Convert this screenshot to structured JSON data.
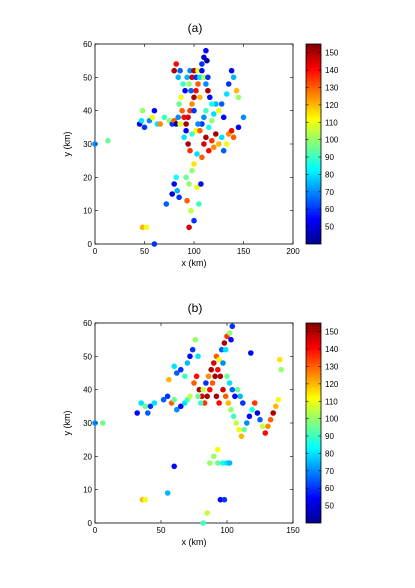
{
  "chart_data": [
    {
      "type": "scatter",
      "title": "(a)",
      "xlabel": "x (km)",
      "ylabel": "y (km)",
      "xlim": [
        0,
        200
      ],
      "ylim": [
        0,
        60
      ],
      "xticks": [
        "0",
        "50",
        "100",
        "150",
        "200"
      ],
      "yticks": [
        "0",
        "10",
        "20",
        "30",
        "40",
        "50",
        "60"
      ],
      "colorbar": {
        "range": [
          40,
          155
        ],
        "ticks": [
          "50",
          "60",
          "70",
          "80",
          "90",
          "100",
          "110",
          "120",
          "130",
          "140",
          "150"
        ]
      },
      "points": [
        [
          0,
          30,
          70
        ],
        [
          13,
          31,
          95
        ],
        [
          48,
          5,
          120
        ],
        [
          52,
          5,
          110
        ],
        [
          60,
          0,
          60
        ],
        [
          45,
          36,
          50
        ],
        [
          47,
          37,
          80
        ],
        [
          48,
          40,
          100
        ],
        [
          50,
          35,
          60
        ],
        [
          55,
          37,
          70
        ],
        [
          58,
          38,
          110
        ],
        [
          60,
          40,
          55
        ],
        [
          63,
          36,
          80
        ],
        [
          66,
          36,
          125
        ],
        [
          70,
          38,
          90
        ],
        [
          75,
          37,
          100
        ],
        [
          78,
          36,
          60
        ],
        [
          80,
          37,
          130
        ],
        [
          82,
          36,
          45
        ],
        [
          72,
          12,
          65
        ],
        [
          78,
          15,
          50
        ],
        [
          80,
          18,
          55
        ],
        [
          82,
          20,
          85
        ],
        [
          83,
          16,
          75
        ],
        [
          85,
          14,
          60
        ],
        [
          93,
          13,
          130
        ],
        [
          95,
          5,
          145
        ],
        [
          97,
          10,
          105
        ],
        [
          100,
          7,
          60
        ],
        [
          103,
          17,
          110
        ],
        [
          105,
          12,
          90
        ],
        [
          107,
          18,
          55
        ],
        [
          95,
          18,
          100
        ],
        [
          92,
          20,
          95
        ],
        [
          98,
          22,
          100
        ],
        [
          100,
          24,
          115
        ],
        [
          103,
          27,
          80
        ],
        [
          108,
          26,
          130
        ],
        [
          110,
          30,
          145
        ],
        [
          112,
          32,
          150
        ],
        [
          115,
          28,
          140
        ],
        [
          118,
          31,
          135
        ],
        [
          120,
          29,
          125
        ],
        [
          122,
          33,
          150
        ],
        [
          125,
          30,
          120
        ],
        [
          128,
          32,
          80
        ],
        [
          130,
          28,
          65
        ],
        [
          133,
          30,
          110
        ],
        [
          135,
          33,
          125
        ],
        [
          138,
          34,
          140
        ],
        [
          140,
          32,
          130
        ],
        [
          145,
          35,
          55
        ],
        [
          150,
          38,
          70
        ],
        [
          108,
          36,
          60
        ],
        [
          110,
          38,
          70
        ],
        [
          112,
          40,
          90
        ],
        [
          115,
          35,
          85
        ],
        [
          118,
          37,
          100
        ],
        [
          120,
          39,
          80
        ],
        [
          122,
          42,
          75
        ],
        [
          125,
          40,
          110
        ],
        [
          128,
          42,
          65
        ],
        [
          130,
          38,
          55
        ],
        [
          133,
          45,
          80
        ],
        [
          135,
          48,
          60
        ],
        [
          140,
          50,
          75
        ],
        [
          138,
          52,
          55
        ],
        [
          143,
          46,
          120
        ],
        [
          145,
          44,
          100
        ],
        [
          85,
          42,
          95
        ],
        [
          87,
          44,
          110
        ],
        [
          88,
          40,
          130
        ],
        [
          90,
          38,
          140
        ],
        [
          92,
          36,
          150
        ],
        [
          94,
          38,
          145
        ],
        [
          96,
          40,
          135
        ],
        [
          98,
          42,
          125
        ],
        [
          100,
          44,
          150
        ],
        [
          102,
          46,
          140
        ],
        [
          104,
          48,
          130
        ],
        [
          106,
          44,
          120
        ],
        [
          100,
          40,
          60
        ],
        [
          97,
          46,
          65
        ],
        [
          95,
          48,
          100
        ],
        [
          93,
          50,
          75
        ],
        [
          91,
          46,
          55
        ],
        [
          89,
          48,
          90
        ],
        [
          96,
          52,
          70
        ],
        [
          98,
          50,
          145
        ],
        [
          100,
          52,
          150
        ],
        [
          102,
          50,
          60
        ],
        [
          104,
          52,
          110
        ],
        [
          106,
          50,
          80
        ],
        [
          108,
          52,
          55
        ],
        [
          110,
          50,
          105
        ],
        [
          112,
          48,
          70
        ],
        [
          114,
          46,
          150
        ],
        [
          116,
          44,
          55
        ],
        [
          118,
          42,
          85
        ],
        [
          114,
          50,
          60
        ],
        [
          110,
          56,
          50
        ],
        [
          112,
          58,
          55
        ],
        [
          113,
          55,
          45
        ],
        [
          108,
          54,
          60
        ],
        [
          80,
          52,
          150
        ],
        [
          82,
          54,
          140
        ],
        [
          84,
          50,
          75
        ],
        [
          86,
          52,
          65
        ],
        [
          90,
          32,
          80
        ],
        [
          92,
          34,
          55
        ],
        [
          94,
          30,
          150
        ],
        [
          96,
          28,
          135
        ],
        [
          98,
          33,
          90
        ],
        [
          102,
          34,
          110
        ],
        [
          104,
          36,
          70
        ],
        [
          106,
          34,
          130
        ],
        [
          86,
          36,
          110
        ],
        [
          84,
          38,
          70
        ]
      ]
    },
    {
      "type": "scatter",
      "title": "(b)",
      "xlabel": "x (km)",
      "ylabel": "y (km)",
      "xlim": [
        0,
        150
      ],
      "ylim": [
        0,
        60
      ],
      "xticks": [
        "0",
        "50",
        "100",
        "150"
      ],
      "yticks": [
        "0",
        "10",
        "20",
        "30",
        "40",
        "50",
        "60"
      ],
      "colorbar": {
        "range": [
          40,
          155
        ],
        "ticks": [
          "50",
          "60",
          "70",
          "80",
          "90",
          "100",
          "110",
          "120",
          "130",
          "140",
          "150"
        ]
      },
      "points": [
        [
          0,
          30,
          70
        ],
        [
          6,
          30,
          95
        ],
        [
          36,
          7,
          120
        ],
        [
          38,
          7,
          110
        ],
        [
          60,
          17,
          55
        ],
        [
          82,
          0,
          90
        ],
        [
          85,
          3,
          105
        ],
        [
          95,
          7,
          55
        ],
        [
          98,
          7,
          60
        ],
        [
          87,
          18,
          100
        ],
        [
          93,
          18,
          95
        ],
        [
          97,
          18,
          85
        ],
        [
          100,
          18,
          80
        ],
        [
          102,
          18,
          75
        ],
        [
          90,
          20,
          100
        ],
        [
          93,
          22,
          110
        ],
        [
          55,
          9,
          75
        ],
        [
          32,
          33,
          55
        ],
        [
          35,
          36,
          80
        ],
        [
          38,
          35,
          95
        ],
        [
          40,
          33,
          65
        ],
        [
          42,
          35,
          60
        ],
        [
          45,
          36,
          80
        ],
        [
          52,
          37,
          65
        ],
        [
          55,
          38,
          60
        ],
        [
          58,
          36,
          130
        ],
        [
          60,
          37,
          95
        ],
        [
          62,
          34,
          70
        ],
        [
          65,
          35,
          55
        ],
        [
          68,
          36,
          80
        ],
        [
          70,
          37,
          90
        ],
        [
          72,
          38,
          105
        ],
        [
          56,
          43,
          120
        ],
        [
          60,
          47,
          80
        ],
        [
          62,
          45,
          65
        ],
        [
          65,
          46,
          60
        ],
        [
          68,
          44,
          90
        ],
        [
          70,
          48,
          75
        ],
        [
          72,
          50,
          55
        ],
        [
          74,
          52,
          60
        ],
        [
          76,
          55,
          100
        ],
        [
          78,
          50,
          80
        ],
        [
          75,
          42,
          130
        ],
        [
          77,
          44,
          140
        ],
        [
          79,
          40,
          150
        ],
        [
          81,
          38,
          145
        ],
        [
          83,
          36,
          135
        ],
        [
          85,
          38,
          150
        ],
        [
          87,
          40,
          140
        ],
        [
          89,
          42,
          130
        ],
        [
          91,
          44,
          150
        ],
        [
          93,
          46,
          140
        ],
        [
          78,
          38,
          95
        ],
        [
          80,
          36,
          90
        ],
        [
          82,
          40,
          105
        ],
        [
          84,
          42,
          60
        ],
        [
          86,
          44,
          125
        ],
        [
          88,
          46,
          150
        ],
        [
          90,
          48,
          145
        ],
        [
          92,
          50,
          130
        ],
        [
          94,
          49,
          110
        ],
        [
          96,
          52,
          65
        ],
        [
          98,
          54,
          150
        ],
        [
          100,
          56,
          135
        ],
        [
          102,
          57,
          100
        ],
        [
          104,
          59,
          60
        ],
        [
          103,
          55,
          55
        ],
        [
          99,
          52,
          80
        ],
        [
          97,
          48,
          70
        ],
        [
          95,
          44,
          150
        ],
        [
          97,
          40,
          145
        ],
        [
          99,
          38,
          130
        ],
        [
          101,
          36,
          120
        ],
        [
          103,
          34,
          100
        ],
        [
          105,
          32,
          90
        ],
        [
          107,
          30,
          105
        ],
        [
          109,
          28,
          110
        ],
        [
          111,
          26,
          120
        ],
        [
          113,
          28,
          95
        ],
        [
          115,
          30,
          70
        ],
        [
          117,
          32,
          55
        ],
        [
          119,
          34,
          85
        ],
        [
          121,
          36,
          135
        ],
        [
          123,
          33,
          50
        ],
        [
          125,
          31,
          65
        ],
        [
          127,
          29,
          105
        ],
        [
          129,
          27,
          140
        ],
        [
          131,
          29,
          125
        ],
        [
          133,
          31,
          130
        ],
        [
          135,
          33,
          150
        ],
        [
          137,
          35,
          120
        ],
        [
          139,
          37,
          110
        ],
        [
          140,
          49,
          115
        ],
        [
          141,
          46,
          100
        ],
        [
          118,
          51,
          55
        ],
        [
          108,
          40,
          95
        ],
        [
          110,
          38,
          75
        ],
        [
          112,
          36,
          60
        ],
        [
          106,
          38,
          55
        ],
        [
          104,
          40,
          65
        ],
        [
          102,
          42,
          80
        ],
        [
          100,
          44,
          95
        ],
        [
          94,
          36,
          140
        ],
        [
          92,
          38,
          150
        ]
      ]
    }
  ]
}
